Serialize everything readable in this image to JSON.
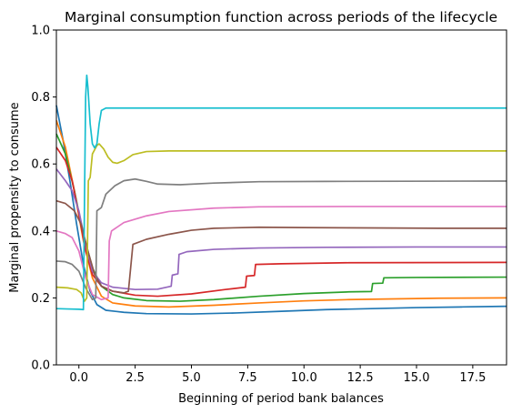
{
  "chart_data": {
    "type": "line",
    "title": "Marginal consumption function across periods of the lifecycle",
    "xlabel": "Beginning of period bank balances",
    "ylabel": "Marginal propensity to consume",
    "xlim": [
      -1.0,
      19.0
    ],
    "ylim": [
      0.0,
      1.0
    ],
    "xticks": [
      0.0,
      2.5,
      5.0,
      7.5,
      10.0,
      12.5,
      15.0,
      17.5
    ],
    "xtick_labels": [
      "0.0",
      "2.5",
      "5.0",
      "7.5",
      "10.0",
      "12.5",
      "15.0",
      "17.5"
    ],
    "yticks": [
      0.0,
      0.2,
      0.4,
      0.6,
      0.8,
      1.0
    ],
    "ytick_labels": [
      "0.0",
      "0.2",
      "0.4",
      "0.6",
      "0.8",
      "1.0"
    ],
    "grid": false,
    "legend": "none",
    "series": [
      {
        "color": "#1f77b4",
        "points": [
          [
            -1.0,
            0.775
          ],
          [
            -0.7,
            0.67
          ],
          [
            -0.4,
            0.55
          ],
          [
            -0.1,
            0.42
          ],
          [
            0.2,
            0.3
          ],
          [
            0.5,
            0.22
          ],
          [
            0.8,
            0.18
          ],
          [
            1.2,
            0.163
          ],
          [
            2.0,
            0.157
          ],
          [
            3.0,
            0.153
          ],
          [
            5.0,
            0.152
          ],
          [
            7.0,
            0.155
          ],
          [
            9.0,
            0.16
          ],
          [
            11.0,
            0.165
          ],
          [
            13.0,
            0.168
          ],
          [
            15.0,
            0.171
          ],
          [
            17.0,
            0.173
          ],
          [
            19.0,
            0.175
          ]
        ]
      },
      {
        "color": "#ff7f0e",
        "points": [
          [
            -1.0,
            0.73
          ],
          [
            -0.6,
            0.65
          ],
          [
            -0.2,
            0.52
          ],
          [
            0.2,
            0.37
          ],
          [
            0.6,
            0.26
          ],
          [
            1.0,
            0.205
          ],
          [
            1.5,
            0.185
          ],
          [
            2.5,
            0.176
          ],
          [
            4.0,
            0.173
          ],
          [
            6.0,
            0.178
          ],
          [
            8.0,
            0.185
          ],
          [
            10.0,
            0.191
          ],
          [
            12.0,
            0.195
          ],
          [
            14.0,
            0.197
          ],
          [
            16.0,
            0.199
          ],
          [
            19.0,
            0.2
          ]
        ]
      },
      {
        "color": "#2ca02c",
        "points": [
          [
            -1.0,
            0.69
          ],
          [
            -0.6,
            0.63
          ],
          [
            -0.2,
            0.52
          ],
          [
            0.2,
            0.39
          ],
          [
            0.6,
            0.29
          ],
          [
            1.0,
            0.235
          ],
          [
            1.5,
            0.21
          ],
          [
            2.0,
            0.2
          ],
          [
            3.0,
            0.192
          ],
          [
            4.5,
            0.19
          ],
          [
            6.0,
            0.195
          ],
          [
            8.0,
            0.205
          ],
          [
            10.0,
            0.213
          ],
          [
            12.0,
            0.218
          ],
          [
            13.0,
            0.219
          ],
          [
            13.05,
            0.243
          ],
          [
            13.5,
            0.244
          ],
          [
            13.55,
            0.26
          ],
          [
            15.0,
            0.261
          ],
          [
            19.0,
            0.262
          ]
        ]
      },
      {
        "color": "#d62728",
        "points": [
          [
            -1.0,
            0.65
          ],
          [
            -0.6,
            0.61
          ],
          [
            -0.3,
            0.55
          ],
          [
            0.0,
            0.45
          ],
          [
            0.3,
            0.34
          ],
          [
            0.6,
            0.27
          ],
          [
            1.0,
            0.235
          ],
          [
            1.5,
            0.22
          ],
          [
            2.5,
            0.208
          ],
          [
            3.5,
            0.205
          ],
          [
            5.0,
            0.212
          ],
          [
            6.5,
            0.225
          ],
          [
            7.4,
            0.232
          ],
          [
            7.45,
            0.265
          ],
          [
            7.8,
            0.267
          ],
          [
            7.85,
            0.3
          ],
          [
            9.0,
            0.302
          ],
          [
            12.0,
            0.305
          ],
          [
            19.0,
            0.306
          ]
        ]
      },
      {
        "color": "#9467bd",
        "points": [
          [
            -1.0,
            0.585
          ],
          [
            -0.6,
            0.55
          ],
          [
            -0.3,
            0.52
          ],
          [
            0.0,
            0.46
          ],
          [
            0.3,
            0.36
          ],
          [
            0.6,
            0.28
          ],
          [
            1.0,
            0.245
          ],
          [
            1.5,
            0.232
          ],
          [
            2.5,
            0.225
          ],
          [
            3.5,
            0.226
          ],
          [
            4.1,
            0.235
          ],
          [
            4.15,
            0.268
          ],
          [
            4.4,
            0.272
          ],
          [
            4.45,
            0.33
          ],
          [
            4.8,
            0.338
          ],
          [
            6.0,
            0.345
          ],
          [
            8.0,
            0.349
          ],
          [
            11.0,
            0.351
          ],
          [
            15.0,
            0.352
          ],
          [
            19.0,
            0.352
          ]
        ]
      },
      {
        "color": "#8c564b",
        "points": [
          [
            -1.0,
            0.49
          ],
          [
            -0.6,
            0.482
          ],
          [
            -0.2,
            0.46
          ],
          [
            0.1,
            0.42
          ],
          [
            0.4,
            0.34
          ],
          [
            0.7,
            0.27
          ],
          [
            1.0,
            0.235
          ],
          [
            1.5,
            0.22
          ],
          [
            2.0,
            0.215
          ],
          [
            2.2,
            0.22
          ],
          [
            2.3,
            0.29
          ],
          [
            2.4,
            0.36
          ],
          [
            3.0,
            0.375
          ],
          [
            4.0,
            0.39
          ],
          [
            5.0,
            0.402
          ],
          [
            6.0,
            0.408
          ],
          [
            8.0,
            0.411
          ],
          [
            10.0,
            0.41
          ],
          [
            13.0,
            0.409
          ],
          [
            16.0,
            0.408
          ],
          [
            19.0,
            0.408
          ]
        ]
      },
      {
        "color": "#e377c2",
        "points": [
          [
            -1.0,
            0.4
          ],
          [
            -0.6,
            0.392
          ],
          [
            -0.3,
            0.38
          ],
          [
            0.0,
            0.34
          ],
          [
            0.3,
            0.26
          ],
          [
            0.6,
            0.21
          ],
          [
            1.0,
            0.195
          ],
          [
            1.3,
            0.2
          ],
          [
            1.35,
            0.37
          ],
          [
            1.45,
            0.4
          ],
          [
            2.0,
            0.425
          ],
          [
            3.0,
            0.445
          ],
          [
            4.0,
            0.458
          ],
          [
            6.0,
            0.468
          ],
          [
            8.0,
            0.472
          ],
          [
            12.0,
            0.473
          ],
          [
            19.0,
            0.473
          ]
        ]
      },
      {
        "color": "#7f7f7f",
        "points": [
          [
            -1.0,
            0.31
          ],
          [
            -0.6,
            0.308
          ],
          [
            -0.3,
            0.3
          ],
          [
            0.0,
            0.28
          ],
          [
            0.3,
            0.23
          ],
          [
            0.6,
            0.195
          ],
          [
            0.75,
            0.2
          ],
          [
            0.8,
            0.46
          ],
          [
            1.0,
            0.47
          ],
          [
            1.2,
            0.51
          ],
          [
            1.6,
            0.535
          ],
          [
            2.0,
            0.55
          ],
          [
            2.5,
            0.555
          ],
          [
            3.0,
            0.548
          ],
          [
            3.5,
            0.54
          ],
          [
            4.5,
            0.538
          ],
          [
            6.0,
            0.543
          ],
          [
            8.0,
            0.547
          ],
          [
            11.0,
            0.548
          ],
          [
            19.0,
            0.549
          ]
        ]
      },
      {
        "color": "#bcbd22",
        "points": [
          [
            -1.0,
            0.232
          ],
          [
            -0.5,
            0.23
          ],
          [
            -0.1,
            0.225
          ],
          [
            0.1,
            0.215
          ],
          [
            0.25,
            0.19
          ],
          [
            0.35,
            0.2
          ],
          [
            0.42,
            0.55
          ],
          [
            0.5,
            0.56
          ],
          [
            0.6,
            0.63
          ],
          [
            0.8,
            0.655
          ],
          [
            0.9,
            0.66
          ],
          [
            1.1,
            0.645
          ],
          [
            1.3,
            0.62
          ],
          [
            1.5,
            0.605
          ],
          [
            1.7,
            0.602
          ],
          [
            2.0,
            0.61
          ],
          [
            2.4,
            0.628
          ],
          [
            3.0,
            0.637
          ],
          [
            4.0,
            0.639
          ],
          [
            6.0,
            0.639
          ],
          [
            19.0,
            0.639
          ]
        ]
      },
      {
        "color": "#17becf",
        "points": [
          [
            -1.0,
            0.168
          ],
          [
            -0.5,
            0.167
          ],
          [
            0.0,
            0.166
          ],
          [
            0.2,
            0.165
          ],
          [
            0.25,
            0.5
          ],
          [
            0.3,
            0.8
          ],
          [
            0.35,
            0.865
          ],
          [
            0.4,
            0.83
          ],
          [
            0.5,
            0.72
          ],
          [
            0.6,
            0.66
          ],
          [
            0.7,
            0.648
          ],
          [
            0.8,
            0.66
          ],
          [
            0.9,
            0.72
          ],
          [
            1.0,
            0.76
          ],
          [
            1.2,
            0.767
          ],
          [
            2.0,
            0.767
          ],
          [
            19.0,
            0.767
          ]
        ]
      }
    ]
  }
}
